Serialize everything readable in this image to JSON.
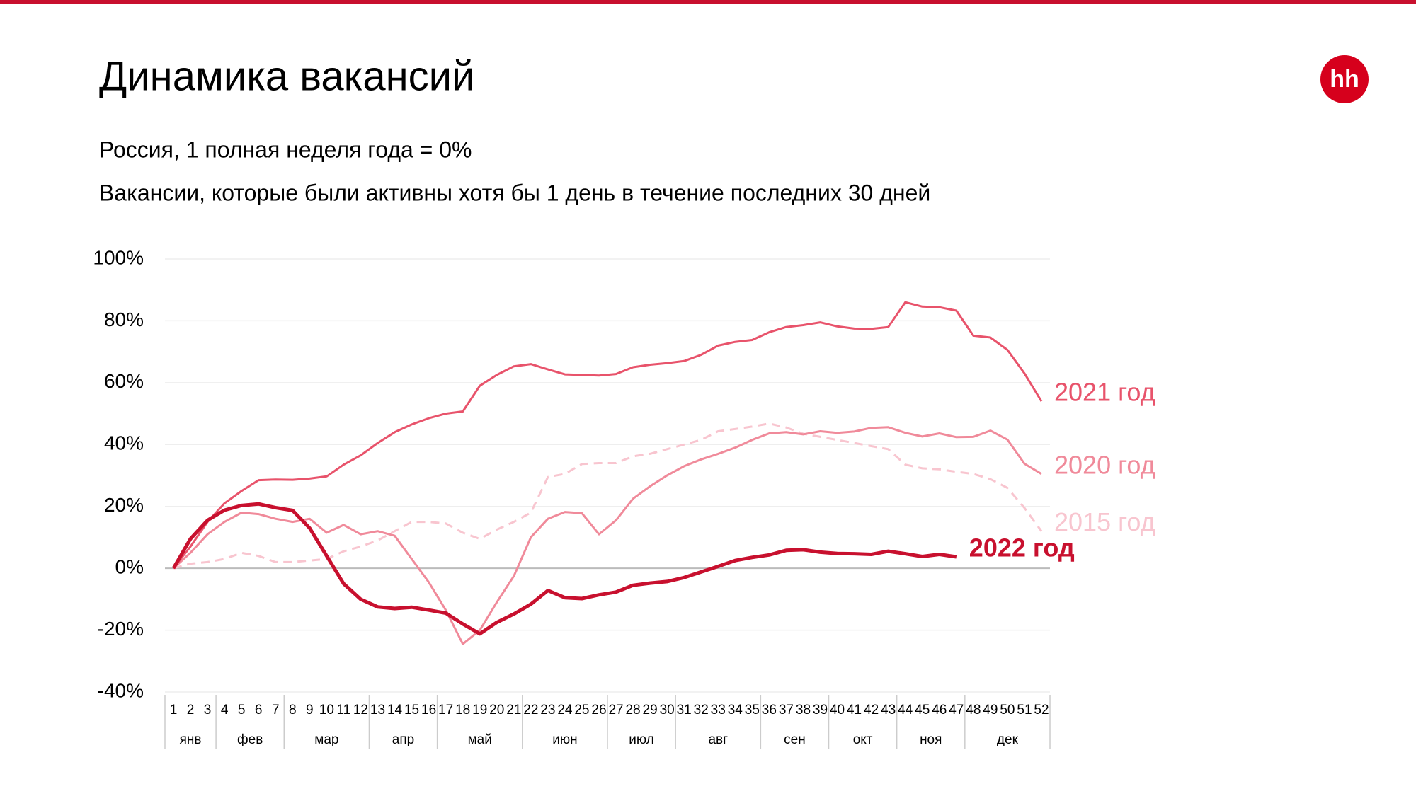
{
  "logo": "hh",
  "chart_data": {
    "type": "line",
    "title": "Динамика вакансий",
    "subtitle": "Россия, 1 полная неделя года = 0%",
    "subtitle2": "Вакансии, которые были активны хотя бы 1 день в течение последних 30 дней",
    "x": [
      1,
      2,
      3,
      4,
      5,
      6,
      7,
      8,
      9,
      10,
      11,
      12,
      13,
      14,
      15,
      16,
      17,
      18,
      19,
      20,
      21,
      22,
      23,
      24,
      25,
      26,
      27,
      28,
      29,
      30,
      31,
      32,
      33,
      34,
      35,
      36,
      37,
      38,
      39,
      40,
      41,
      42,
      43,
      44,
      45,
      46,
      47,
      48,
      49,
      50,
      51,
      52
    ],
    "xlim": [
      1,
      52
    ],
    "month_groups": [
      {
        "label": "янв",
        "first_week": 1,
        "last_week": 3
      },
      {
        "label": "фев",
        "first_week": 4,
        "last_week": 7
      },
      {
        "label": "мар",
        "first_week": 8,
        "last_week": 12
      },
      {
        "label": "апр",
        "first_week": 13,
        "last_week": 16
      },
      {
        "label": "май",
        "first_week": 17,
        "last_week": 21
      },
      {
        "label": "июн",
        "first_week": 22,
        "last_week": 26
      },
      {
        "label": "июл",
        "first_week": 27,
        "last_week": 30
      },
      {
        "label": "авг",
        "first_week": 31,
        "last_week": 35
      },
      {
        "label": "сен",
        "first_week": 36,
        "last_week": 39
      },
      {
        "label": "окт",
        "first_week": 40,
        "last_week": 43
      },
      {
        "label": "ноя",
        "first_week": 44,
        "last_week": 47
      },
      {
        "label": "дек",
        "first_week": 48,
        "last_week": 52
      }
    ],
    "ylim": [
      -40,
      100
    ],
    "yticks": [
      {
        "value": -40,
        "label": "-40%"
      },
      {
        "value": -20,
        "label": "-20%"
      },
      {
        "value": 0,
        "label": "0%"
      },
      {
        "value": 20,
        "label": "20%"
      },
      {
        "value": 40,
        "label": "40%"
      },
      {
        "value": 60,
        "label": "60%"
      },
      {
        "value": 80,
        "label": "80%"
      },
      {
        "value": 100,
        "label": "100%"
      }
    ],
    "grid": true,
    "series": [
      {
        "name": "2015 год",
        "color": "#f8c5cf",
        "dashed": true,
        "bold": false,
        "values": [
          0,
          1.5,
          2,
          3,
          5,
          4,
          2,
          2,
          2.5,
          3,
          5.5,
          7,
          9,
          12,
          15,
          15,
          14.5,
          11.5,
          9.5,
          12.5,
          15,
          18,
          29.5,
          30.5,
          33.7,
          34,
          34,
          36.2,
          37,
          38.5,
          40,
          41.5,
          44.3,
          45,
          45.8,
          46.8,
          45.5,
          43.5,
          42.5,
          41.5,
          40.5,
          39.5,
          38.5,
          33.5,
          32.3,
          32,
          31.2,
          30.5,
          28.8,
          26,
          19.5,
          12
        ]
      },
      {
        "name": "2020 год",
        "color": "#f08a9a",
        "dashed": false,
        "bold": false,
        "values": [
          0,
          5,
          11,
          15,
          18,
          17.5,
          16,
          15,
          16,
          11.5,
          14,
          11,
          12,
          10.5,
          3,
          -4.5,
          -13.5,
          -24.5,
          -20,
          -11,
          -2.5,
          10,
          16,
          18.2,
          17.8,
          11,
          15.5,
          22.5,
          26.5,
          30,
          33,
          35.2,
          37,
          39,
          41.5,
          43.6,
          44,
          43.3,
          44.3,
          43.8,
          44.2,
          45.4,
          45.6,
          43.8,
          42.6,
          43.6,
          42.4,
          42.5,
          44.5,
          41.6,
          33.8,
          30.5
        ]
      },
      {
        "name": "2021 год",
        "color": "#e8536b",
        "dashed": false,
        "bold": false,
        "values": [
          0,
          7,
          15,
          21,
          25,
          28.5,
          28.7,
          28.6,
          29,
          29.7,
          33.5,
          36.5,
          40.5,
          44,
          46.5,
          48.5,
          50,
          50.7,
          59,
          62.5,
          65.3,
          66,
          64.3,
          62.7,
          62.5,
          62.3,
          62.8,
          65,
          65.8,
          66.3,
          67,
          69,
          72,
          73.2,
          73.8,
          76.3,
          78,
          78.6,
          79.5,
          78.2,
          77.5,
          77.4,
          78,
          86,
          84.6,
          84.4,
          83.3,
          75.2,
          74.6,
          70.6,
          63,
          54
        ]
      },
      {
        "name": "2022 год",
        "color": "#c8102e",
        "dashed": false,
        "bold": true,
        "values": [
          0,
          9.5,
          15.5,
          18.8,
          20.3,
          20.8,
          19.6,
          18.7,
          13,
          4,
          -5,
          -10,
          -12.5,
          -13,
          -12.6,
          -13.5,
          -14.5,
          -18,
          -21.2,
          -17.5,
          -14.8,
          -11.6,
          -7.2,
          -9.5,
          -9.8,
          -8.6,
          -7.7,
          -5.5,
          -4.8,
          -4.3,
          -3,
          -1.2,
          0.6,
          2.5,
          3.5,
          4.3,
          5.8,
          6,
          5.2,
          4.8,
          4.7,
          4.5,
          5.5,
          4.7,
          3.8,
          4.5,
          3.7,
          null,
          null,
          null,
          null,
          null
        ]
      }
    ]
  }
}
